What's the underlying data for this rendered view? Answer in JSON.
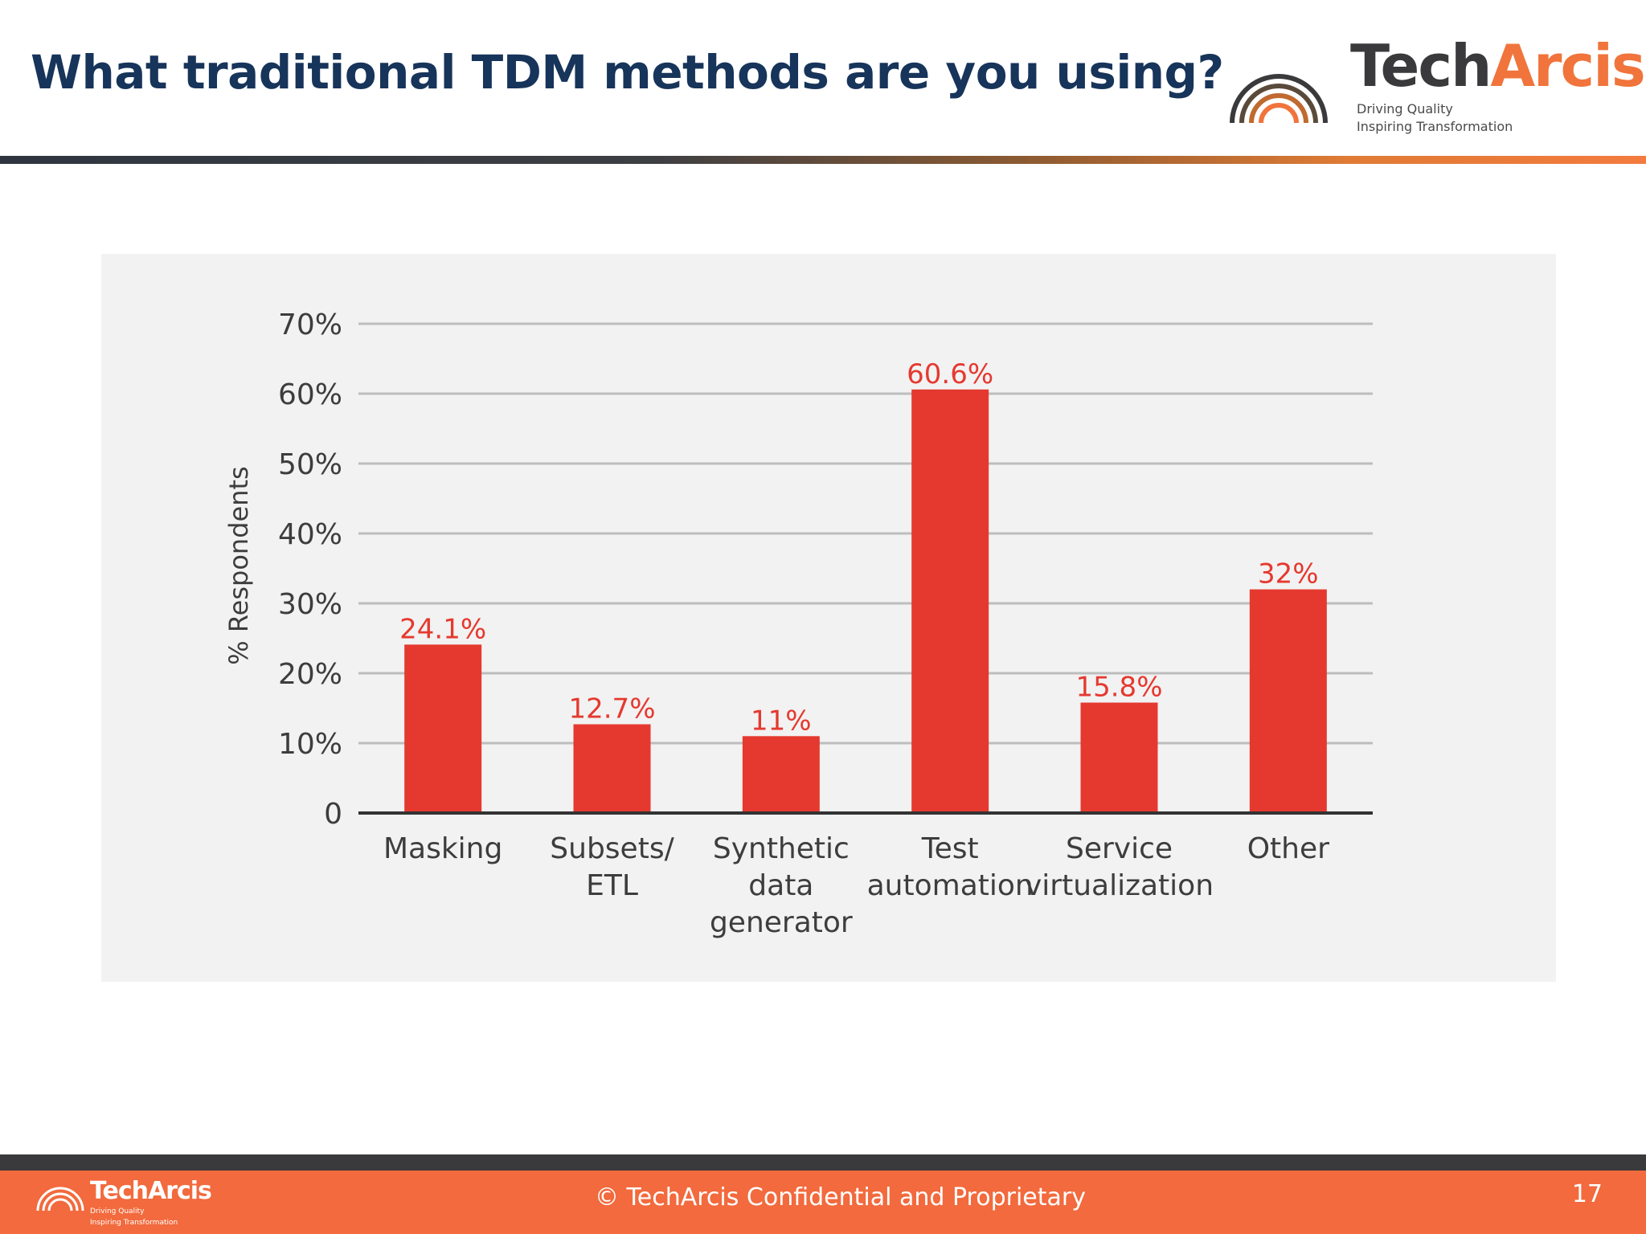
{
  "slide": {
    "title": "What traditional TDM methods are you using?",
    "page_number": "17",
    "footer_text": "© TechArcis Confidential and Proprietary"
  },
  "logo": {
    "name_part1": "Tech",
    "name_part2": "Arcis",
    "tagline1": "Driving Quality",
    "tagline2": "Inspiring Transformation"
  },
  "colors": {
    "title": "#17345a",
    "bar": "#e5392f",
    "data_label": "#e5392f",
    "accent_orange": "#f26a3d",
    "dark": "#3a3a3c"
  },
  "chart_data": {
    "type": "bar",
    "categories": [
      [
        "Masking"
      ],
      [
        "Subsets/",
        "ETL"
      ],
      [
        "Synthetic",
        "data",
        "generator"
      ],
      [
        "Test",
        "automation"
      ],
      [
        "Service",
        "virtualization"
      ],
      [
        "Other"
      ]
    ],
    "values": [
      24.1,
      12.7,
      11,
      60.6,
      15.8,
      32
    ],
    "data_labels": [
      "24.1%",
      "12.7%",
      "11%",
      "60.6%",
      "15.8%",
      "32%"
    ],
    "ylabel": "% Respondents",
    "ylim": [
      0,
      70
    ],
    "yticks": [
      0,
      10,
      20,
      30,
      40,
      50,
      60,
      70
    ],
    "ytick_labels": [
      "0",
      "10%",
      "20%",
      "30%",
      "40%",
      "50%",
      "60%",
      "70%"
    ],
    "grid": true,
    "legend": "none"
  }
}
